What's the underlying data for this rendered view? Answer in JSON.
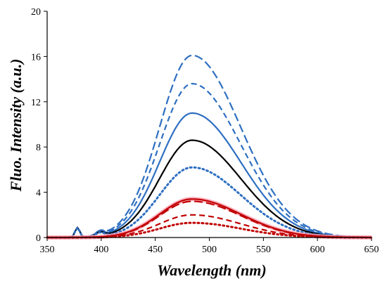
{
  "chart_data": {
    "type": "line",
    "title": "",
    "xlabel": "Wavelength (nm)",
    "ylabel": "Fluo. Intensity (a.u.)",
    "xlim": [
      350,
      650
    ],
    "ylim": [
      0,
      20
    ],
    "x_ticks": [
      "350",
      "400",
      "450",
      "500",
      "550",
      "600",
      "650"
    ],
    "y_ticks": [
      "0",
      "4",
      "8",
      "12",
      "16",
      "20"
    ],
    "grid": false,
    "legend": "none",
    "peak_wavelength_nm": 484,
    "series": [
      {
        "color": "#2e6fc1",
        "dash": "long-dash",
        "peak": 16.1
      },
      {
        "color": "#2e6fc1",
        "dash": "medium-dash",
        "peak": 13.6
      },
      {
        "color": "#2e6fc1",
        "dash": "solid",
        "peak": 11.0
      },
      {
        "color": "#000000",
        "dash": "solid",
        "peak": 8.6
      },
      {
        "color": "#2e6fc1",
        "dash": "dotted",
        "peak": 6.2
      },
      {
        "color": "#ff9fb0",
        "dash": "solid-thick",
        "peak": 3.4
      },
      {
        "color": "#c00000",
        "dash": "solid",
        "peak": 3.4
      },
      {
        "color": "#c00000",
        "dash": "long-dash",
        "peak": 3.2
      },
      {
        "color": "#c00000",
        "dash": "medium-dash",
        "peak": 2.0
      },
      {
        "color": "#c00000",
        "dash": "dotted",
        "peak": 1.3
      }
    ]
  }
}
